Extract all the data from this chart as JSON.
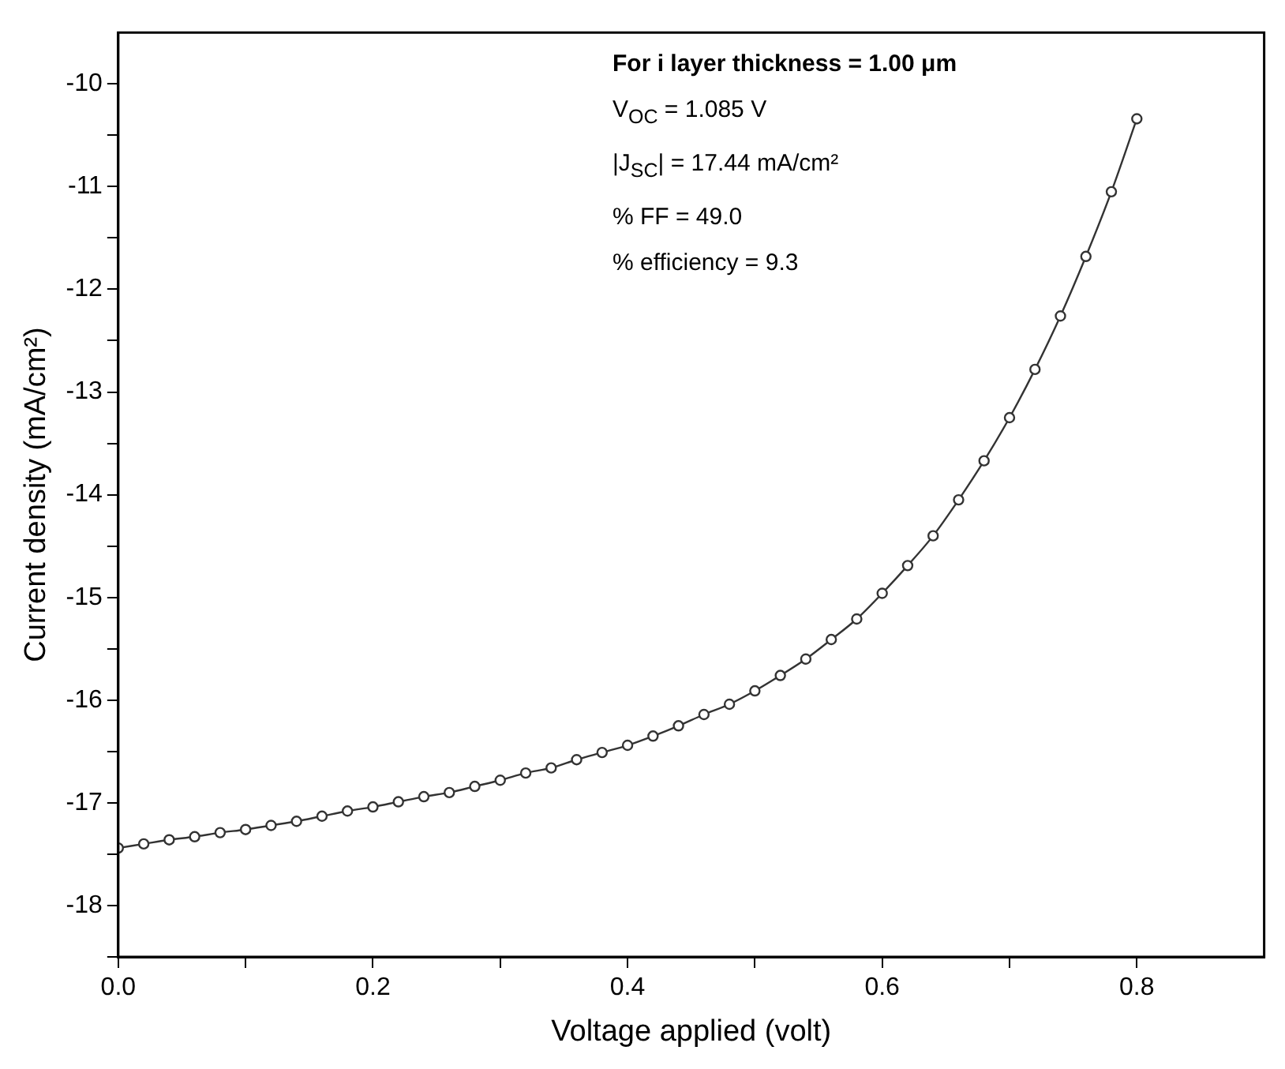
{
  "chart_data": {
    "type": "line",
    "xlabel": "Voltage applied (volt)",
    "ylabel": "Current density (mA/cm²)",
    "x": [
      0.0,
      0.02,
      0.04,
      0.06,
      0.08,
      0.1,
      0.12,
      0.14,
      0.16,
      0.18,
      0.2,
      0.22,
      0.24,
      0.26,
      0.28,
      0.3,
      0.32,
      0.34,
      0.36,
      0.38,
      0.4,
      0.42,
      0.44,
      0.46,
      0.48,
      0.5,
      0.52,
      0.54,
      0.56,
      0.58,
      0.6,
      0.62,
      0.64,
      0.66,
      0.68,
      0.7,
      0.72,
      0.74,
      0.76,
      0.78,
      0.8
    ],
    "series": [
      {
        "color": "#333333",
        "values": [
          -17.44,
          -17.4,
          -17.36,
          -17.33,
          -17.29,
          -17.26,
          -17.22,
          -17.18,
          -17.13,
          -17.08,
          -17.04,
          -16.99,
          -16.94,
          -16.9,
          -16.84,
          -16.78,
          -16.71,
          -16.66,
          -16.58,
          -16.51,
          -16.44,
          -16.35,
          -16.25,
          -16.14,
          -16.04,
          -15.91,
          -15.76,
          -15.6,
          -15.41,
          -15.21,
          -14.96,
          -14.69,
          -14.4,
          -14.05,
          -13.67,
          -13.25,
          -12.78,
          -12.26,
          -11.68,
          -11.05,
          -10.34
        ]
      }
    ],
    "xlim": [
      0,
      0.9
    ],
    "xticks": [
      {
        "value": 0,
        "label": "0.0"
      },
      {
        "value": 0.1,
        "label": null
      },
      {
        "value": 0.2,
        "label": "0.2"
      },
      {
        "value": 0.3,
        "label": null
      },
      {
        "value": 0.4,
        "label": "0.4"
      },
      {
        "value": 0.5,
        "label": null
      },
      {
        "value": 0.6,
        "label": "0.6"
      },
      {
        "value": 0.7,
        "label": null
      },
      {
        "value": 0.8,
        "label": "0.8"
      }
    ],
    "ylim": [
      -18.5,
      -9.5
    ],
    "yticks": [
      {
        "value": -18.5,
        "label": null
      },
      -18,
      {
        "value": -17.5,
        "label": null
      },
      -17,
      {
        "value": -16.5,
        "label": null
      },
      -16,
      {
        "value": -15.5,
        "label": null
      },
      -15,
      {
        "value": -14.5,
        "label": null
      },
      -14,
      {
        "value": -13.5,
        "label": null
      },
      -13,
      {
        "value": -12.5,
        "label": null
      },
      -12,
      {
        "value": -11.5,
        "label": null
      },
      -11,
      {
        "value": -10.5,
        "label": null
      },
      -10
    ],
    "annotations": [
      "For i layer thickness = 1.00 μm",
      "V$_{OC}$ = 1.085 V",
      "|J$_{SC}$| = 17.44 mA/cm²",
      "% FF = 49.0",
      "% efficiency = 9.3"
    ],
    "marker": "circle",
    "line_style": "solid",
    "grid": false,
    "legend": false
  }
}
